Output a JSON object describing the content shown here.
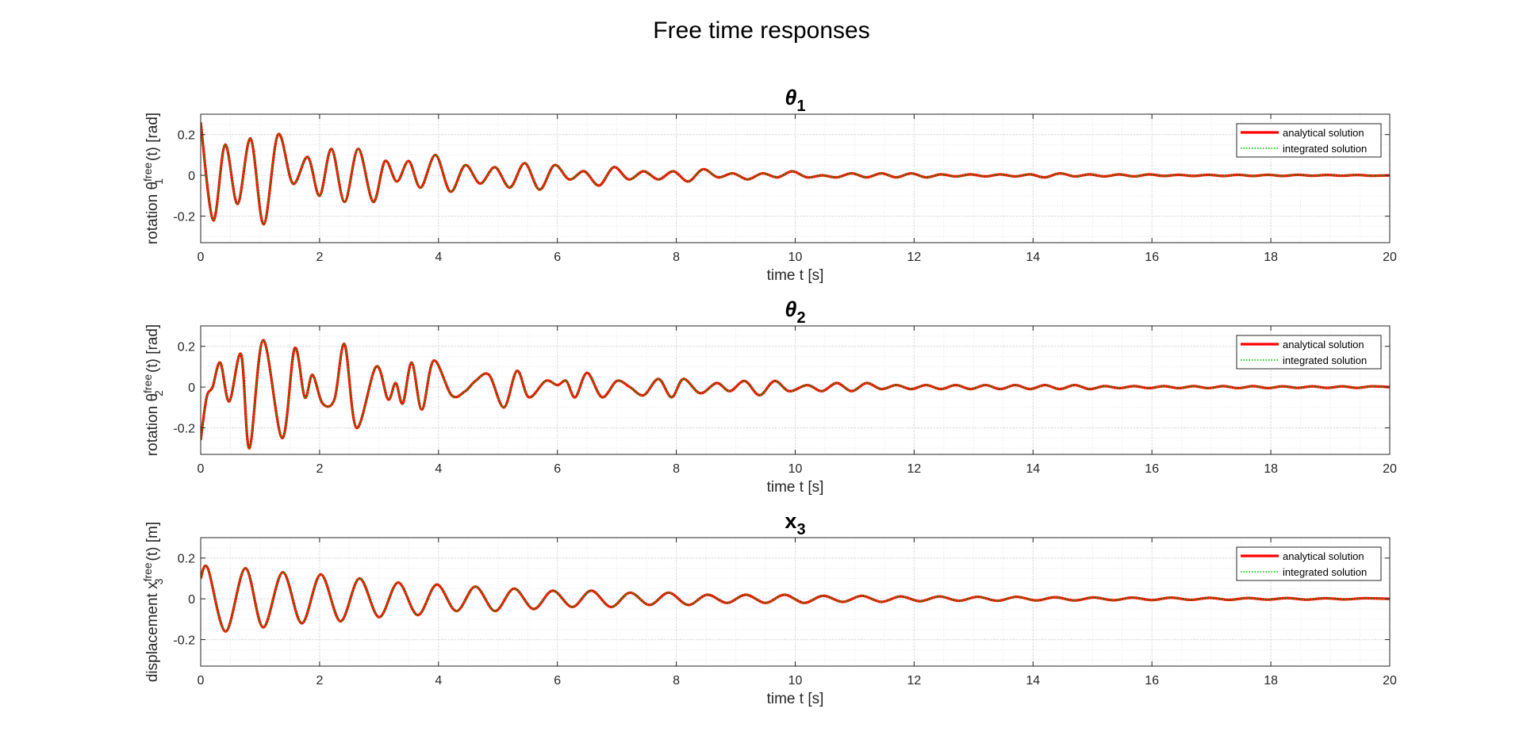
{
  "figure": {
    "title": "Free time responses"
  },
  "chart_data": [
    {
      "type": "line",
      "title": "θ1",
      "title_main": "θ",
      "title_sub": "1",
      "xlabel": "time t [s]",
      "ylabel_parts": {
        "pre": "rotation θ",
        "sup": "free",
        "sub": "1",
        "post": "(t)   [rad]"
      },
      "xlim": [
        0,
        20
      ],
      "ylim": [
        -0.33,
        0.3
      ],
      "xticks": [
        0,
        2,
        4,
        6,
        8,
        10,
        12,
        14,
        16,
        18,
        20
      ],
      "yticks": [
        -0.2,
        0,
        0.2
      ],
      "grid": true,
      "legend_position": "top-right",
      "series": [
        {
          "name": "analytical solution",
          "style": "solid",
          "color": "#ff0000"
        },
        {
          "name": "integrated solution",
          "style": "dotted",
          "color": "#00cc00"
        }
      ],
      "x": [
        0,
        0.21,
        0.41,
        0.62,
        0.84,
        1.06,
        1.3,
        1.55,
        1.8,
        2.0,
        2.2,
        2.42,
        2.65,
        2.9,
        3.1,
        3.3,
        3.5,
        3.7,
        3.95,
        4.2,
        4.45,
        4.7,
        4.95,
        5.2,
        5.45,
        5.7,
        5.95,
        6.2,
        6.45,
        6.7,
        6.95,
        7.2,
        7.45,
        7.7,
        7.95,
        8.2,
        8.45,
        8.7,
        8.95,
        9.2,
        9.45,
        9.7,
        9.95,
        10.2,
        10.45,
        10.7,
        10.95,
        11.2,
        11.45,
        11.7,
        11.95,
        12.2,
        12.45,
        12.7,
        12.95,
        13.2,
        13.45,
        13.7,
        13.95,
        14.2,
        14.45,
        14.7,
        14.95,
        15.2,
        15.45,
        15.7,
        15.95,
        16.2,
        16.45,
        16.7,
        16.95,
        17.2,
        17.45,
        17.7,
        17.95,
        18.2,
        18.45,
        18.7,
        18.95,
        19.2,
        19.45,
        19.7,
        20.0
      ],
      "y": [
        0.26,
        -0.22,
        0.15,
        -0.14,
        0.18,
        -0.24,
        0.2,
        -0.04,
        0.09,
        -0.1,
        0.13,
        -0.13,
        0.13,
        -0.13,
        0.07,
        -0.03,
        0.07,
        -0.06,
        0.1,
        -0.08,
        0.05,
        -0.04,
        0.04,
        -0.06,
        0.06,
        -0.07,
        0.05,
        -0.02,
        0.02,
        -0.05,
        0.04,
        -0.02,
        0.02,
        -0.02,
        0.02,
        -0.03,
        0.03,
        -0.01,
        0.01,
        -0.02,
        0.01,
        -0.01,
        0.02,
        -0.01,
        0.0,
        -0.01,
        0.01,
        -0.01,
        0.01,
        -0.01,
        0.01,
        -0.01,
        0.005,
        -0.005,
        0.005,
        -0.005,
        0.005,
        -0.005,
        0.005,
        -0.01,
        0.01,
        -0.005,
        0.005,
        -0.005,
        0.005,
        -0.005,
        0.005,
        -0.003,
        0.003,
        -0.003,
        0.003,
        -0.003,
        0.003,
        -0.003,
        0.003,
        -0.003,
        0.003,
        -0.002,
        0.002,
        -0.002,
        0.002,
        -0.002,
        0.0
      ]
    },
    {
      "type": "line",
      "title": "θ2",
      "title_main": "θ",
      "title_sub": "2",
      "xlabel": "time t [s]",
      "ylabel_parts": {
        "pre": "rotation θ",
        "sup": "free",
        "sub": "2",
        "post": "(t)   [rad]"
      },
      "xlim": [
        0,
        20
      ],
      "ylim": [
        -0.33,
        0.3
      ],
      "xticks": [
        0,
        2,
        4,
        6,
        8,
        10,
        12,
        14,
        16,
        18,
        20
      ],
      "yticks": [
        -0.2,
        0,
        0.2
      ],
      "grid": true,
      "legend_position": "top-right",
      "series": [
        {
          "name": "analytical solution",
          "style": "solid",
          "color": "#ff0000"
        },
        {
          "name": "integrated solution",
          "style": "dotted",
          "color": "#00cc00"
        }
      ],
      "x": [
        0,
        0.1,
        0.2,
        0.33,
        0.48,
        0.68,
        0.82,
        1.05,
        1.37,
        1.58,
        1.75,
        1.88,
        2.05,
        2.25,
        2.42,
        2.62,
        2.95,
        3.15,
        3.28,
        3.4,
        3.55,
        3.72,
        3.92,
        4.22,
        4.45,
        4.62,
        4.85,
        5.1,
        5.32,
        5.52,
        5.8,
        6.0,
        6.15,
        6.3,
        6.5,
        6.75,
        7.0,
        7.22,
        7.45,
        7.7,
        7.92,
        8.12,
        8.4,
        8.68,
        8.9,
        9.15,
        9.4,
        9.65,
        9.9,
        10.2,
        10.45,
        10.7,
        10.95,
        11.2,
        11.45,
        11.7,
        11.95,
        12.2,
        12.45,
        12.7,
        12.95,
        13.2,
        13.45,
        13.7,
        13.95,
        14.2,
        14.45,
        14.7,
        14.95,
        15.2,
        15.45,
        15.7,
        15.95,
        16.2,
        16.45,
        16.7,
        16.95,
        17.2,
        17.45,
        17.7,
        17.95,
        18.2,
        18.45,
        18.7,
        18.95,
        19.2,
        19.45,
        19.7,
        20.0
      ],
      "y": [
        -0.26,
        -0.05,
        0.0,
        0.12,
        -0.07,
        0.16,
        -0.3,
        0.23,
        -0.25,
        0.19,
        -0.05,
        0.06,
        -0.08,
        -0.06,
        0.21,
        -0.2,
        0.1,
        -0.06,
        0.02,
        -0.08,
        0.12,
        -0.11,
        0.13,
        -0.04,
        -0.02,
        0.03,
        0.06,
        -0.1,
        0.08,
        -0.05,
        0.03,
        0.01,
        0.03,
        -0.05,
        0.07,
        -0.05,
        0.03,
        0.0,
        -0.04,
        0.04,
        -0.05,
        0.04,
        -0.03,
        0.02,
        -0.02,
        0.03,
        -0.04,
        0.03,
        -0.02,
        0.01,
        -0.02,
        0.02,
        -0.02,
        0.02,
        -0.01,
        0.01,
        -0.01,
        0.01,
        -0.01,
        0.01,
        -0.01,
        0.01,
        -0.01,
        0.01,
        -0.01,
        0.01,
        -0.01,
        0.01,
        -0.01,
        0.005,
        -0.005,
        0.005,
        -0.005,
        0.005,
        -0.005,
        0.005,
        -0.005,
        0.005,
        -0.005,
        0.005,
        -0.005,
        0.004,
        -0.004,
        0.004,
        -0.004,
        0.004,
        -0.004,
        0.004,
        0.0
      ]
    },
    {
      "type": "line",
      "title": "x3",
      "title_main": "x",
      "title_sub": "3",
      "xlabel": "time t [s]",
      "ylabel_parts": {
        "pre": "displacement x",
        "sup": "free",
        "sub": "3",
        "post": "(t)   [m]"
      },
      "xlim": [
        0,
        20
      ],
      "ylim": [
        -0.33,
        0.3
      ],
      "xticks": [
        0,
        2,
        4,
        6,
        8,
        10,
        12,
        14,
        16,
        18,
        20
      ],
      "yticks": [
        -0.2,
        0,
        0.2
      ],
      "grid": true,
      "legend_position": "top-right",
      "series": [
        {
          "name": "analytical solution",
          "style": "solid",
          "color": "#ff0000"
        },
        {
          "name": "integrated solution",
          "style": "dotted",
          "color": "#00cc00"
        }
      ],
      "x": [
        0,
        0.12,
        0.42,
        0.75,
        1.05,
        1.38,
        1.7,
        2.02,
        2.35,
        2.67,
        3.0,
        3.32,
        3.65,
        3.97,
        4.3,
        4.62,
        4.95,
        5.27,
        5.6,
        5.92,
        6.25,
        6.57,
        6.9,
        7.22,
        7.55,
        7.87,
        8.2,
        8.52,
        8.85,
        9.17,
        9.5,
        9.82,
        10.15,
        10.47,
        10.8,
        11.12,
        11.45,
        11.77,
        12.1,
        12.42,
        12.75,
        13.07,
        13.4,
        13.72,
        14.05,
        14.37,
        14.7,
        15.02,
        15.35,
        15.67,
        16.0,
        16.32,
        16.65,
        16.97,
        17.3,
        17.62,
        17.95,
        18.27,
        18.6,
        18.92,
        19.25,
        19.57,
        20.0
      ],
      "y": [
        0.1,
        0.15,
        -0.16,
        0.15,
        -0.14,
        0.13,
        -0.12,
        0.12,
        -0.11,
        0.1,
        -0.09,
        0.08,
        -0.08,
        0.07,
        -0.06,
        0.06,
        -0.06,
        0.05,
        -0.05,
        0.04,
        -0.04,
        0.04,
        -0.04,
        0.03,
        -0.03,
        0.03,
        -0.03,
        0.02,
        -0.02,
        0.02,
        -0.02,
        0.02,
        -0.02,
        0.015,
        -0.015,
        0.015,
        -0.015,
        0.012,
        -0.012,
        0.012,
        -0.01,
        0.01,
        -0.01,
        0.01,
        -0.008,
        0.008,
        -0.008,
        0.007,
        -0.007,
        0.006,
        -0.006,
        0.006,
        -0.005,
        0.005,
        -0.005,
        0.004,
        -0.004,
        0.004,
        -0.004,
        0.003,
        -0.003,
        0.003,
        0.0
      ]
    }
  ]
}
